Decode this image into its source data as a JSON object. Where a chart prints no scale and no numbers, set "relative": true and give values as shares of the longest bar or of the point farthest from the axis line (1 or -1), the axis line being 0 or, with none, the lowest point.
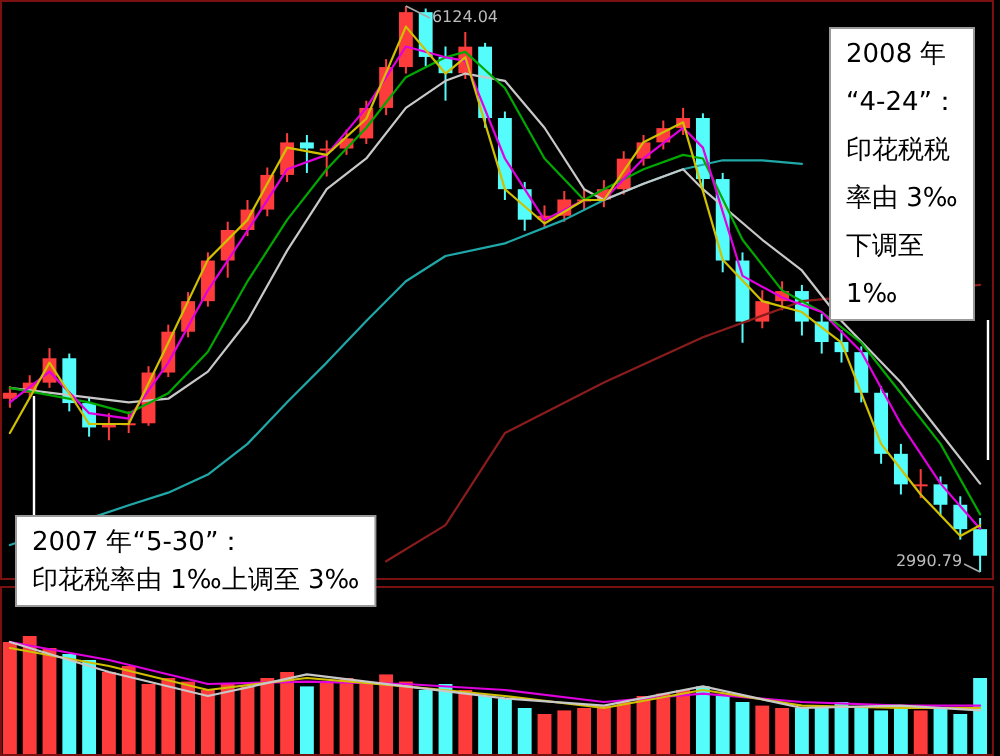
{
  "chart_data": [
    {
      "type": "candlestick",
      "categories": [
        null,
        null,
        null,
        null,
        null,
        null,
        null,
        null,
        null,
        null,
        null,
        null,
        null,
        null,
        null,
        null,
        null,
        null,
        null,
        null,
        null,
        null,
        null,
        null,
        null,
        null,
        null,
        null,
        null,
        null,
        null,
        null,
        null,
        null,
        null,
        null,
        null,
        null,
        null,
        null,
        null,
        null,
        null,
        null,
        null,
        null,
        null,
        null,
        null,
        null
      ],
      "ohlc": [
        [
          3950,
          4020,
          3900,
          3983
        ],
        [
          3983,
          4080,
          3950,
          4039
        ],
        [
          4039,
          4230,
          4010,
          4174
        ],
        [
          4174,
          4200,
          3880,
          3926
        ],
        [
          3926,
          3960,
          3740,
          3791
        ],
        [
          3791,
          3870,
          3720,
          3814
        ],
        [
          3814,
          3880,
          3760,
          3814
        ],
        [
          3814,
          4130,
          3800,
          4095
        ],
        [
          4095,
          4360,
          4070,
          4321
        ],
        [
          4321,
          4540,
          4290,
          4490
        ],
        [
          4490,
          4760,
          4460,
          4715
        ],
        [
          4715,
          4930,
          4620,
          4884
        ],
        [
          4884,
          5050,
          4850,
          4997
        ],
        [
          4997,
          5230,
          4960,
          5189
        ],
        [
          5189,
          5420,
          5150,
          5369
        ],
        [
          5369,
          5410,
          5200,
          5335
        ],
        [
          5335,
          5380,
          5180,
          5335
        ],
        [
          5335,
          5440,
          5300,
          5391
        ],
        [
          5391,
          5600,
          5360,
          5560
        ],
        [
          5560,
          5830,
          5520,
          5786
        ],
        [
          5786,
          6124.04,
          5750,
          6090
        ],
        [
          6090,
          6110,
          5790,
          5842
        ],
        [
          5842,
          5900,
          5600,
          5752
        ],
        [
          5752,
          5980,
          5720,
          5899
        ],
        [
          5899,
          5920,
          5450,
          5504
        ],
        [
          5504,
          5540,
          5050,
          5110
        ],
        [
          5110,
          5150,
          4880,
          4941
        ],
        [
          4941,
          5020,
          4900,
          4963
        ],
        [
          4963,
          5100,
          4930,
          5053
        ],
        [
          5053,
          5110,
          4990,
          5053
        ],
        [
          5053,
          5160,
          5010,
          5110
        ],
        [
          5110,
          5320,
          5080,
          5279
        ],
        [
          5279,
          5410,
          5240,
          5369
        ],
        [
          5369,
          5490,
          5330,
          5448
        ],
        [
          5448,
          5560,
          5410,
          5504
        ],
        [
          5504,
          5530,
          5100,
          5166
        ],
        [
          5166,
          5200,
          4650,
          4715
        ],
        [
          4715,
          4760,
          4260,
          4377
        ],
        [
          4377,
          4550,
          4340,
          4490
        ],
        [
          4490,
          4600,
          4440,
          4546
        ],
        [
          4546,
          4580,
          4300,
          4377
        ],
        [
          4377,
          4420,
          4200,
          4264
        ],
        [
          4264,
          4330,
          4150,
          4208
        ],
        [
          4208,
          4240,
          3930,
          3983
        ],
        [
          3983,
          4020,
          3590,
          3645
        ],
        [
          3645,
          3700,
          3420,
          3476
        ],
        [
          3476,
          3560,
          3400,
          3476
        ],
        [
          3476,
          3520,
          3300,
          3363
        ],
        [
          3363,
          3410,
          3170,
          3228
        ],
        [
          3228,
          3290,
          2990.79,
          3081
        ]
      ],
      "colors": [
        "#ff3c3c",
        "#ff3c3c",
        "#ff3c3c",
        "#54fcfc",
        "#54fcfc",
        "#ff3c3c",
        "#ff3c3c",
        "#ff3c3c",
        "#ff3c3c",
        "#ff3c3c",
        "#ff3c3c",
        "#ff3c3c",
        "#ff3c3c",
        "#ff3c3c",
        "#ff3c3c",
        "#54fcfc",
        "#ff3c3c",
        "#ff3c3c",
        "#ff3c3c",
        "#ff3c3c",
        "#ff3c3c",
        "#54fcfc",
        "#54fcfc",
        "#ff3c3c",
        "#54fcfc",
        "#54fcfc",
        "#54fcfc",
        "#ff3c3c",
        "#ff3c3c",
        "#ff3c3c",
        "#ff3c3c",
        "#ff3c3c",
        "#ff3c3c",
        "#ff3c3c",
        "#ff3c3c",
        "#54fcfc",
        "#54fcfc",
        "#54fcfc",
        "#ff3c3c",
        "#ff3c3c",
        "#54fcfc",
        "#54fcfc",
        "#54fcfc",
        "#54fcfc",
        "#54fcfc",
        "#54fcfc",
        "#ff3c3c",
        "#54fcfc",
        "#54fcfc",
        "#54fcfc"
      ],
      "series": [
        {
          "type": "line",
          "color": "#20a8a8",
          "values": [
            3140,
            null,
            null,
            null,
            null,
            null,
            3360,
            null,
            3430,
            null,
            3530,
            null,
            3700,
            null,
            3930,
            null,
            4150,
            null,
            4380,
            null,
            4600,
            null,
            4740,
            null,
            null,
            4810,
            null,
            null,
            4940,
            null,
            5050,
            null,
            5140,
            null,
            5220,
            null,
            5270,
            null,
            5270,
            null,
            5250,
            null,
            null,
            null,
            null,
            null,
            null,
            null,
            null,
            null
          ]
        },
        {
          "type": "line",
          "color": "#8b1c1c",
          "values": [
            null,
            null,
            null,
            null,
            null,
            null,
            null,
            null,
            null,
            null,
            null,
            null,
            null,
            null,
            null,
            null,
            null,
            null,
            null,
            3050,
            null,
            null,
            3250,
            null,
            null,
            3760,
            null,
            null,
            null,
            null,
            4040,
            null,
            null,
            null,
            null,
            4290,
            null,
            null,
            null,
            null,
            4490,
            null,
            null,
            null,
            null,
            null,
            null,
            null,
            null,
            4580
          ]
        },
        {
          "type": "line",
          "color": "#c8c8c8",
          "values": [
            4010,
            null,
            null,
            null,
            null,
            null,
            3930,
            null,
            3950,
            null,
            4100,
            null,
            4380,
            null,
            4770,
            null,
            5110,
            null,
            5280,
            null,
            5560,
            null,
            5710,
            5750,
            null,
            5710,
            null,
            5450,
            null,
            5110,
            5050,
            null,
            5140,
            null,
            5220,
            5110,
            null,
            null,
            4830,
            null,
            4660,
            null,
            4380,
            null,
            null,
            4040,
            null,
            3760,
            null,
            3480
          ]
        },
        {
          "type": "line",
          "color": "#00a800",
          "values": [
            4010,
            null,
            null,
            null,
            3930,
            null,
            3870,
            null,
            3980,
            null,
            4210,
            null,
            4600,
            null,
            4940,
            null,
            5220,
            null,
            5450,
            null,
            5730,
            null,
            5840,
            5870,
            null,
            5670,
            null,
            5280,
            null,
            5050,
            5110,
            null,
            5220,
            null,
            5300,
            5280,
            null,
            4830,
            null,
            4550,
            null,
            4430,
            null,
            4260,
            null,
            3980,
            null,
            3700,
            null,
            3310
          ]
        },
        {
          "type": "line",
          "color": "#e000e0",
          "values": [
            3930,
            null,
            4100,
            null,
            3870,
            null,
            3840,
            null,
            4150,
            null,
            4550,
            null,
            4880,
            null,
            5220,
            null,
            5300,
            null,
            5560,
            null,
            5900,
            null,
            5840,
            5820,
            null,
            5280,
            null,
            4940,
            null,
            5050,
            5050,
            null,
            5280,
            null,
            5450,
            5340,
            null,
            4630,
            null,
            4510,
            null,
            4430,
            null,
            4210,
            null,
            3810,
            null,
            3480,
            null,
            3230
          ]
        },
        {
          "type": "line",
          "color": "#d0c000",
          "values": [
            3760,
            null,
            4150,
            null,
            3810,
            null,
            3810,
            null,
            4260,
            null,
            4720,
            null,
            4940,
            null,
            5340,
            null,
            5300,
            null,
            5500,
            null,
            6010,
            null,
            5750,
            5840,
            null,
            5110,
            null,
            4920,
            null,
            5050,
            5050,
            null,
            5370,
            null,
            5480,
            null,
            4720,
            null,
            4490,
            null,
            4430,
            null,
            4260,
            null,
            3700,
            null,
            3420,
            null,
            3190,
            3250
          ]
        }
      ],
      "annotations": [
        "6124.04",
        "2990.79",
        "2007 年“5-30”：",
        "印花税率由 1‰上调至 3‰",
        "2008 年“4-24”：印花税税率由 3‰下调至 1‰"
      ]
    },
    {
      "type": "bar",
      "relative": true,
      "categories": [
        null,
        null,
        null,
        null,
        null,
        null,
        null,
        null,
        null,
        null,
        null,
        null,
        null,
        null,
        null,
        null,
        null,
        null,
        null,
        null,
        null,
        null,
        null,
        null,
        null,
        null,
        null,
        null,
        null,
        null,
        null,
        null,
        null,
        null,
        null,
        null,
        null,
        null,
        null,
        null,
        null,
        null,
        null,
        null,
        null,
        null,
        null,
        null,
        null,
        null
      ],
      "series": [
        {
          "type": "bar",
          "values": [
            0.95,
            1,
            0.9,
            0.85,
            0.8,
            0.7,
            0.75,
            0.6,
            0.65,
            0.62,
            0.55,
            0.6,
            0.58,
            0.65,
            0.7,
            0.58,
            0.62,
            0.65,
            0.6,
            0.68,
            0.62,
            0.55,
            0.6,
            0.55,
            0.5,
            0.48,
            0.4,
            0.35,
            0.38,
            0.4,
            0.42,
            0.45,
            0.5,
            0.52,
            0.55,
            0.58,
            0.5,
            0.45,
            0.42,
            0.4,
            0.4,
            0.42,
            0.45,
            0.4,
            0.38,
            0.42,
            0.38,
            0.4,
            0.35,
            0.65
          ],
          "colors": [
            "#ff3c3c",
            "#ff3c3c",
            "#ff3c3c",
            "#54fcfc",
            "#54fcfc",
            "#ff3c3c",
            "#ff3c3c",
            "#ff3c3c",
            "#ff3c3c",
            "#ff3c3c",
            "#ff3c3c",
            "#ff3c3c",
            "#ff3c3c",
            "#ff3c3c",
            "#ff3c3c",
            "#54fcfc",
            "#ff3c3c",
            "#ff3c3c",
            "#ff3c3c",
            "#ff3c3c",
            "#ff3c3c",
            "#54fcfc",
            "#54fcfc",
            "#ff3c3c",
            "#54fcfc",
            "#54fcfc",
            "#54fcfc",
            "#ff3c3c",
            "#ff3c3c",
            "#ff3c3c",
            "#ff3c3c",
            "#ff3c3c",
            "#ff3c3c",
            "#ff3c3c",
            "#ff3c3c",
            "#54fcfc",
            "#54fcfc",
            "#54fcfc",
            "#ff3c3c",
            "#ff3c3c",
            "#54fcfc",
            "#54fcfc",
            "#54fcfc",
            "#54fcfc",
            "#54fcfc",
            "#54fcfc",
            "#ff3c3c",
            "#54fcfc",
            "#54fcfc",
            "#54fcfc"
          ]
        },
        {
          "type": "line",
          "color": "#e000e0",
          "values": [
            0.95,
            null,
            null,
            null,
            null,
            0.8,
            null,
            null,
            null,
            null,
            0.6,
            null,
            null,
            null,
            null,
            0.62,
            null,
            null,
            null,
            null,
            0.6,
            null,
            null,
            null,
            null,
            0.55,
            null,
            null,
            null,
            null,
            0.45,
            null,
            null,
            null,
            null,
            0.52,
            null,
            null,
            null,
            null,
            0.45,
            null,
            null,
            null,
            null,
            0.42,
            null,
            null,
            null,
            0.42
          ]
        },
        {
          "type": "line",
          "color": "#d0c000",
          "values": [
            0.9,
            null,
            null,
            null,
            null,
            0.75,
            null,
            null,
            null,
            null,
            0.55,
            null,
            null,
            null,
            null,
            0.65,
            null,
            null,
            null,
            null,
            0.58,
            null,
            null,
            null,
            null,
            0.5,
            null,
            null,
            null,
            null,
            0.4,
            null,
            null,
            null,
            null,
            0.55,
            null,
            null,
            null,
            null,
            0.42,
            null,
            null,
            null,
            null,
            0.4,
            null,
            null,
            null,
            0.4
          ]
        },
        {
          "type": "line",
          "color": "#c8c8c8",
          "values": [
            0.95,
            null,
            null,
            null,
            null,
            0.7,
            null,
            null,
            null,
            null,
            0.5,
            null,
            null,
            null,
            null,
            0.68,
            null,
            null,
            null,
            null,
            0.58,
            null,
            null,
            null,
            null,
            0.48,
            null,
            null,
            null,
            null,
            0.42,
            null,
            null,
            null,
            null,
            0.58,
            null,
            null,
            null,
            null,
            0.4,
            null,
            null,
            null,
            null,
            0.42,
            null,
            null,
            null,
            0.38
          ]
        }
      ]
    }
  ]
}
